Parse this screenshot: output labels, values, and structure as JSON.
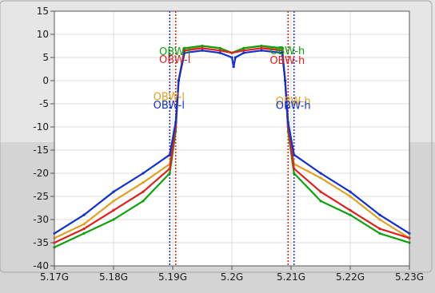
{
  "chart_data": {
    "type": "line",
    "x_ticks": [
      "5.17G",
      "5.18G",
      "5.19G",
      "5.2G",
      "5.21G",
      "5.22G",
      "5.23G"
    ],
    "y_ticks": [
      "15",
      "10",
      "5",
      "0",
      "-5",
      "-10",
      "-15",
      "-20",
      "-25",
      "-30",
      "-35",
      "-40"
    ],
    "xlim": [
      5.17,
      5.23
    ],
    "ylim": [
      -40,
      15
    ],
    "grid": true,
    "series": [
      {
        "color": "#e0a020",
        "x": [
          5.17,
          5.175,
          5.18,
          5.185,
          5.1895,
          5.1905,
          5.191,
          5.192,
          5.195,
          5.198,
          5.2,
          5.202,
          5.205,
          5.2085,
          5.209,
          5.2095,
          5.2105,
          5.215,
          5.22,
          5.225,
          5.23
        ],
        "y": [
          -34,
          -31,
          -26,
          -22,
          -18,
          -10,
          0,
          6.5,
          7.5,
          7,
          6,
          7,
          7.5,
          6.5,
          0,
          -10,
          -18,
          -21,
          -25,
          -30,
          -34
        ]
      },
      {
        "color": "#10a010",
        "x": [
          5.17,
          5.175,
          5.18,
          5.185,
          5.1895,
          5.1905,
          5.191,
          5.192,
          5.195,
          5.198,
          5.2,
          5.202,
          5.205,
          5.2085,
          5.209,
          5.2095,
          5.2105,
          5.215,
          5.22,
          5.225,
          5.23
        ],
        "y": [
          -36,
          -33,
          -30,
          -26,
          -20,
          -11,
          0,
          7,
          7.5,
          7,
          6,
          7,
          7.5,
          7,
          0,
          -11,
          -20,
          -26,
          -29,
          -33,
          -35
        ]
      },
      {
        "color": "#e02020",
        "x": [
          5.17,
          5.175,
          5.18,
          5.185,
          5.1895,
          5.1905,
          5.191,
          5.192,
          5.195,
          5.198,
          5.2,
          5.202,
          5.205,
          5.2085,
          5.209,
          5.2095,
          5.2105,
          5.215,
          5.22,
          5.225,
          5.23
        ],
        "y": [
          -35,
          -32,
          -28,
          -24,
          -19,
          -10,
          0,
          6.5,
          7,
          6.5,
          6,
          6.5,
          7,
          6.5,
          0,
          -10,
          -19,
          -24,
          -28,
          -32,
          -34
        ]
      },
      {
        "color": "#1030d0",
        "x": [
          5.17,
          5.175,
          5.18,
          5.185,
          5.1895,
          5.1905,
          5.191,
          5.192,
          5.195,
          5.198,
          5.2,
          5.2003,
          5.2006,
          5.202,
          5.205,
          5.2085,
          5.209,
          5.2095,
          5.2105,
          5.215,
          5.22,
          5.225,
          5.23
        ],
        "y": [
          -33,
          -29,
          -24,
          -20,
          -16,
          -9,
          0,
          6,
          6.5,
          6,
          5,
          3,
          5,
          6,
          6.5,
          6,
          0,
          -9,
          -16,
          -20,
          -24,
          -29,
          -33
        ]
      }
    ],
    "markers": [
      {
        "label": "OBW-l",
        "color": "#10a010",
        "x": 5.1905,
        "label_y": 5.5
      },
      {
        "label": "OBW-l",
        "color": "#e02020",
        "x": 5.1905,
        "label_y": 3.8
      },
      {
        "label": "OBW-l",
        "color": "#e0a020",
        "x": 5.1895,
        "label_y": -4.2
      },
      {
        "label": "OBW-l",
        "color": "#1030d0",
        "x": 5.1895,
        "label_y": -6
      },
      {
        "label": "OBW-h",
        "color": "#10a010",
        "x": 5.2095,
        "label_y": 5.7
      },
      {
        "label": "OBW-h",
        "color": "#e02020",
        "x": 5.2095,
        "label_y": 3.6
      },
      {
        "label": "OBW-h",
        "color": "#e0a020",
        "x": 5.2105,
        "label_y": -5.2
      },
      {
        "label": "OBW-h",
        "color": "#1030d0",
        "x": 5.2105,
        "label_y": -6.1
      }
    ]
  }
}
